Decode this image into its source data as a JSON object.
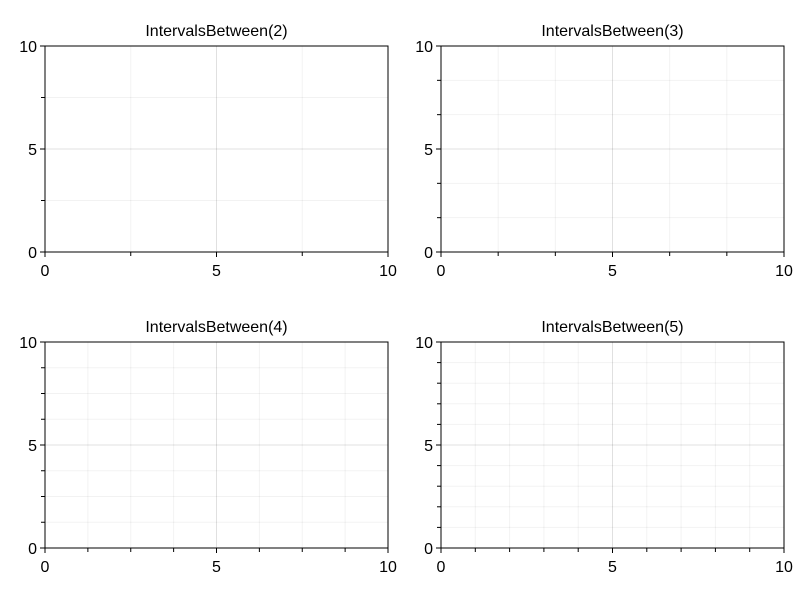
{
  "chart_data": [
    {
      "type": "line",
      "title": "IntervalsBetween(2)",
      "minor_intervals": 2,
      "xlim": [
        0,
        10
      ],
      "ylim": [
        0,
        10
      ],
      "xticks": [
        0,
        5,
        10
      ],
      "yticks": [
        0,
        5,
        10
      ],
      "xtick_labels": [
        "0",
        "5",
        "10"
      ],
      "ytick_labels": [
        "0",
        "5",
        "10"
      ],
      "grid": true,
      "minor_grid": true,
      "series": []
    },
    {
      "type": "line",
      "title": "IntervalsBetween(3)",
      "minor_intervals": 3,
      "xlim": [
        0,
        10
      ],
      "ylim": [
        0,
        10
      ],
      "xticks": [
        0,
        5,
        10
      ],
      "yticks": [
        0,
        5,
        10
      ],
      "xtick_labels": [
        "0",
        "5",
        "10"
      ],
      "ytick_labels": [
        "0",
        "5",
        "10"
      ],
      "grid": true,
      "minor_grid": true,
      "series": []
    },
    {
      "type": "line",
      "title": "IntervalsBetween(4)",
      "minor_intervals": 4,
      "xlim": [
        0,
        10
      ],
      "ylim": [
        0,
        10
      ],
      "xticks": [
        0,
        5,
        10
      ],
      "yticks": [
        0,
        5,
        10
      ],
      "xtick_labels": [
        "0",
        "5",
        "10"
      ],
      "ytick_labels": [
        "0",
        "5",
        "10"
      ],
      "grid": true,
      "minor_grid": true,
      "series": []
    },
    {
      "type": "line",
      "title": "IntervalsBetween(5)",
      "minor_intervals": 5,
      "xlim": [
        0,
        10
      ],
      "ylim": [
        0,
        10
      ],
      "xticks": [
        0,
        5,
        10
      ],
      "yticks": [
        0,
        5,
        10
      ],
      "xtick_labels": [
        "0",
        "5",
        "10"
      ],
      "ytick_labels": [
        "0",
        "5",
        "10"
      ],
      "grid": true,
      "minor_grid": true,
      "series": []
    }
  ]
}
